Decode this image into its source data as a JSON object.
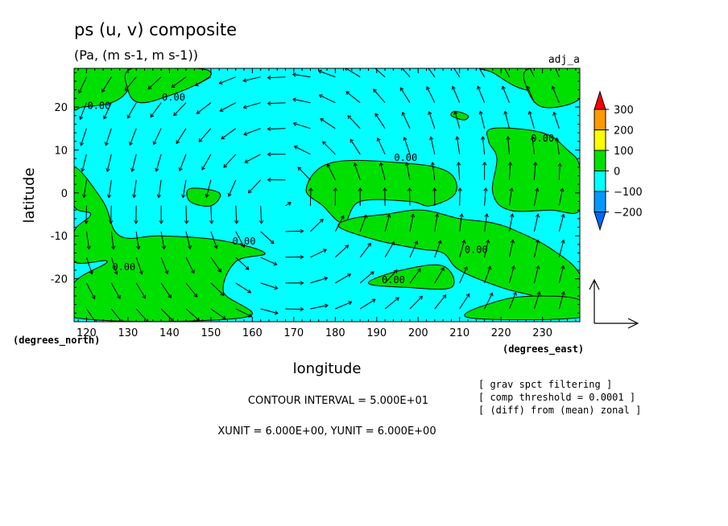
{
  "chart_data": {
    "type": "heatmap",
    "title": "ps (u, v) composite",
    "subtitle": "(Pa, (m s-1, m s-1))",
    "tag": "adj_a",
    "xlabel": "longitude",
    "ylabel": "latitude",
    "x_unit_label": "(degrees_east)",
    "y_unit_label": "(degrees_north)",
    "xlim": [
      117,
      239
    ],
    "ylim": [
      -30,
      29
    ],
    "xticks": [
      120,
      130,
      140,
      150,
      160,
      170,
      180,
      190,
      200,
      210,
      220,
      230
    ],
    "yticks": [
      20,
      10,
      0,
      -10,
      -20
    ],
    "contour_label": "0.00",
    "contour_label_positions": [
      [
        123,
        19.5
      ],
      [
        141,
        21.5
      ],
      [
        197,
        7.5
      ],
      [
        230,
        12
      ],
      [
        158,
        -12
      ],
      [
        129,
        -18
      ],
      [
        214,
        -14
      ],
      [
        194,
        -21
      ]
    ],
    "fill_colors": {
      "below": "#00ffff",
      "above": "#00e000",
      "line": "#000000"
    },
    "regions_above_zero": [
      [
        [
          117,
          29
        ],
        [
          131,
          29
        ],
        [
          130,
          24
        ],
        [
          126,
          21
        ],
        [
          119,
          20
        ],
        [
          117,
          20
        ]
      ],
      [
        [
          131,
          29
        ],
        [
          146,
          29
        ],
        [
          150,
          28
        ],
        [
          148,
          26
        ],
        [
          141,
          23
        ],
        [
          133,
          21
        ],
        [
          130,
          24
        ]
      ],
      [
        [
          216,
          29
        ],
        [
          232,
          29
        ],
        [
          239,
          28
        ],
        [
          239,
          26
        ],
        [
          236,
          25
        ],
        [
          226,
          24
        ],
        [
          218,
          28
        ]
      ],
      [
        [
          227,
          29
        ],
        [
          239,
          29
        ],
        [
          239,
          22
        ],
        [
          230,
          20
        ],
        [
          226,
          25
        ]
      ],
      [
        [
          218,
          15
        ],
        [
          230,
          14
        ],
        [
          236,
          10
        ],
        [
          239,
          6
        ],
        [
          239,
          -4
        ],
        [
          232,
          -4
        ],
        [
          222,
          -4
        ],
        [
          218,
          0
        ],
        [
          219,
          8
        ],
        [
          217,
          12
        ]
      ],
      [
        [
          173,
          1
        ],
        [
          179,
          7
        ],
        [
          196,
          7
        ],
        [
          207,
          5
        ],
        [
          209,
          0
        ],
        [
          203,
          -3
        ],
        [
          198,
          -2
        ],
        [
          186,
          -2
        ],
        [
          182,
          -7
        ],
        [
          177,
          -3
        ]
      ],
      [
        [
          117,
          6
        ],
        [
          124,
          -2
        ],
        [
          128,
          -10
        ],
        [
          138,
          -10
        ],
        [
          152,
          -11
        ],
        [
          163,
          -14
        ],
        [
          156,
          -16
        ],
        [
          153,
          -23
        ],
        [
          158,
          -29
        ],
        [
          117,
          -29
        ],
        [
          117,
          -21
        ],
        [
          125,
          -16
        ],
        [
          117,
          -16
        ],
        [
          117,
          -9
        ],
        [
          121,
          -5
        ],
        [
          117,
          -3
        ]
      ],
      [
        [
          181,
          -8
        ],
        [
          190,
          -11
        ],
        [
          200,
          -13
        ],
        [
          206,
          -14
        ],
        [
          210,
          -18
        ],
        [
          220,
          -22
        ],
        [
          228,
          -24
        ],
        [
          239,
          -27
        ],
        [
          239,
          -19
        ],
        [
          232,
          -13
        ],
        [
          224,
          -9
        ],
        [
          218,
          -7
        ],
        [
          210,
          -6
        ],
        [
          201,
          -4
        ],
        [
          192,
          -5
        ],
        [
          184,
          -6
        ]
      ],
      [
        [
          188,
          -21
        ],
        [
          196,
          -18
        ],
        [
          206,
          -17
        ],
        [
          208,
          -22
        ],
        [
          197,
          -22
        ]
      ],
      [
        [
          145,
          1
        ],
        [
          152,
          0
        ],
        [
          150,
          -3
        ],
        [
          145,
          -2
        ]
      ],
      [
        [
          209,
          19
        ],
        [
          212,
          18
        ],
        [
          211,
          17
        ],
        [
          208,
          18
        ]
      ],
      [
        [
          212,
          -29
        ],
        [
          239,
          -29
        ],
        [
          239,
          -25
        ],
        [
          230,
          -24
        ],
        [
          220,
          -25
        ]
      ]
    ],
    "colorbar": {
      "levels": [
        "300",
        "200",
        "100",
        "0",
        "−100",
        "−200"
      ],
      "colors": [
        "#ff0000",
        "#ff9900",
        "#ffff00",
        "#00e000",
        "#00ffff",
        "#0099ff",
        "#0066ff"
      ]
    },
    "vector_field": {
      "description": "wind vectors (u, v) on 6-degree grid; cyclonic circulation centered near (168, -3)",
      "vortex_center": [
        168,
        -3
      ],
      "reference_vector": "1"
    }
  },
  "notes": {
    "contour_interval": "CONTOUR INTERVAL = 5.000E+01",
    "units": "XUNIT = 6.000E+00, YUNIT = 6.000E+00",
    "filter_lines": [
      "[ grav spct filtering ]",
      "[ comp threshold = 0.0001 ]",
      "[ (diff) from (mean) zonal ]"
    ]
  }
}
